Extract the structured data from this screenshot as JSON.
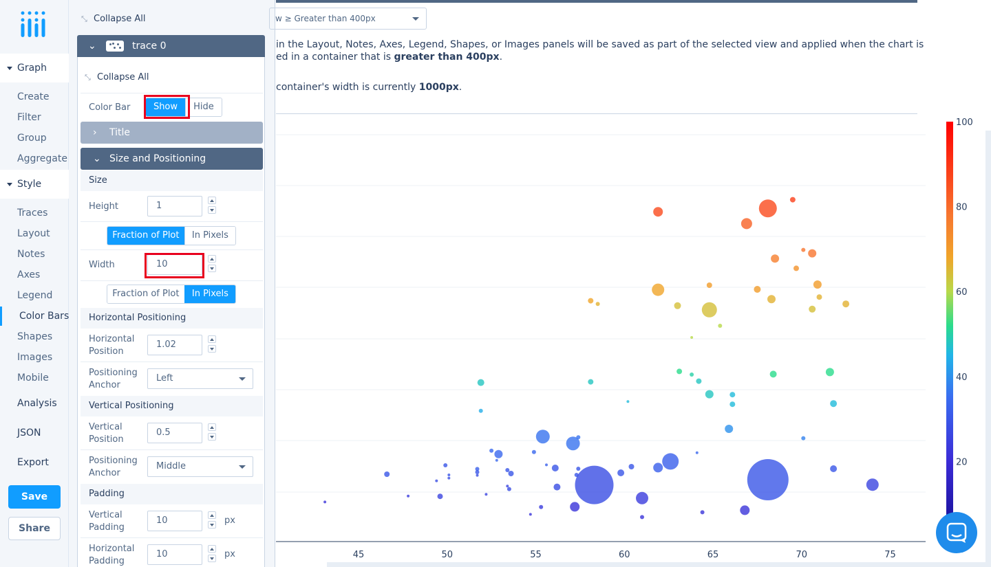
{
  "nav": {
    "sections": [
      {
        "label": "Graph",
        "items": [
          "Create",
          "Filter",
          "Group",
          "Aggregate"
        ]
      },
      {
        "label": "Style",
        "items": [
          "Traces",
          "Layout",
          "Notes",
          "Axes",
          "Legend",
          "Color Bars",
          "Shapes",
          "Images",
          "Mobile"
        ]
      }
    ],
    "active_item": "Color Bars",
    "plain": [
      "Analysis",
      "JSON",
      "Export"
    ],
    "save": "Save",
    "share": "Share"
  },
  "panel": {
    "collapse_all": "Collapse All",
    "trace_name": "trace 0",
    "color_bar_label": "Color Bar",
    "color_bar_options": [
      "Show",
      "Hide"
    ],
    "color_bar_selected": "Show",
    "title_section": "Title",
    "size_section": "Size and Positioning",
    "size_group": "Size",
    "height_label": "Height",
    "height_value": "1",
    "height_modes": [
      "Fraction of Plot",
      "In Pixels"
    ],
    "height_mode_selected": "Fraction of Plot",
    "width_label": "Width",
    "width_value": "10",
    "width_modes": [
      "Fraction of Plot",
      "In Pixels"
    ],
    "width_mode_selected": "In Pixels",
    "hpos_group": "Horizontal Positioning",
    "hpos_label": "Horizontal Position",
    "hpos_value": "1.02",
    "hanchor_label": "Positioning Anchor",
    "hanchor_value": "Left",
    "vpos_group": "Vertical Positioning",
    "vpos_label": "Vertical Position",
    "vpos_value": "0.5",
    "vanchor_label": "Positioning Anchor",
    "vanchor_value": "Middle",
    "padding_group": "Padding",
    "vpad_label": "Vertical Padding",
    "vpad_value": "10",
    "hpad_label": "Horizontal Padding",
    "hpad_value": "10",
    "unit": "px"
  },
  "main": {
    "view_select": "w ≥ Greater than 400px",
    "msg1": "in the Layout, Notes, Axes, Legend, Shapes, or Images panels will be saved as part of the selected view and applied when the chart is",
    "msg2_pre": "ed in a container that is ",
    "msg2_bold": "greater than 400px",
    "msg2_post": ".",
    "msg3_pre": "container's width is currently ",
    "msg3_bold": "1000px",
    "msg3_post": "."
  },
  "chart_data": {
    "type": "scatter",
    "x_ticks": [
      45,
      50,
      55,
      60,
      65,
      70,
      75
    ],
    "colorbar_ticks": [
      100,
      80,
      60,
      40,
      20
    ],
    "color_range": [
      0,
      100
    ],
    "points": [
      {
        "x": 43.1,
        "c": 22,
        "s": 2
      },
      {
        "x": 46.6,
        "c": 30,
        "s": 4
      },
      {
        "x": 47.8,
        "c": 24,
        "s": 2
      },
      {
        "x": 49.6,
        "c": 26,
        "s": 4
      },
      {
        "x": 49.4,
        "c": 28,
        "s": 2
      },
      {
        "x": 49.9,
        "c": 30,
        "s": 3
      },
      {
        "x": 50.1,
        "c": 30,
        "s": 2
      },
      {
        "x": 50.1,
        "c": 28,
        "s": 2
      },
      {
        "x": 51.7,
        "c": 32,
        "s": 3
      },
      {
        "x": 51.7,
        "c": 30,
        "s": 3
      },
      {
        "x": 51.7,
        "c": 28,
        "s": 2
      },
      {
        "x": 52.2,
        "c": 26,
        "s": 2
      },
      {
        "x": 52.5,
        "c": 34,
        "s": 3
      },
      {
        "x": 52.8,
        "c": 34,
        "s": 2
      },
      {
        "x": 52.9,
        "c": 34,
        "s": 6
      },
      {
        "x": 51.9,
        "c": 48,
        "s": 5
      },
      {
        "x": 51.9,
        "c": 44,
        "s": 3
      },
      {
        "x": 53.4,
        "c": 30,
        "s": 3
      },
      {
        "x": 53.5,
        "c": 28,
        "s": 3
      },
      {
        "x": 53.6,
        "c": 30,
        "s": 4
      },
      {
        "x": 53.4,
        "c": 26,
        "s": 2
      },
      {
        "x": 54.7,
        "c": 22,
        "s": 2
      },
      {
        "x": 54.9,
        "c": 34,
        "s": 3
      },
      {
        "x": 55.4,
        "c": 36,
        "s": 10
      },
      {
        "x": 55.6,
        "c": 32,
        "s": 2
      },
      {
        "x": 56.1,
        "c": 30,
        "s": 5
      },
      {
        "x": 56.2,
        "c": 28,
        "s": 5
      },
      {
        "x": 57.1,
        "c": 36,
        "s": 10
      },
      {
        "x": 57.4,
        "c": 36,
        "s": 3
      },
      {
        "x": 57.3,
        "c": 30,
        "s": 3
      },
      {
        "x": 57.4,
        "c": 30,
        "s": 3
      },
      {
        "x": 58.1,
        "c": 68,
        "s": 4
      },
      {
        "x": 58.5,
        "c": 66,
        "s": 3
      },
      {
        "x": 58.1,
        "c": 48,
        "s": 4
      },
      {
        "x": 58.3,
        "c": 28,
        "s": 28
      },
      {
        "x": 57.2,
        "c": 22,
        "s": 7
      },
      {
        "x": 55.3,
        "c": 24,
        "s": 3
      },
      {
        "x": 59.8,
        "c": 30,
        "s": 5
      },
      {
        "x": 60.4,
        "c": 30,
        "s": 4
      },
      {
        "x": 60.2,
        "c": 46,
        "s": 2
      },
      {
        "x": 61.0,
        "c": 24,
        "s": 9
      },
      {
        "x": 61.0,
        "c": 22,
        "s": 3
      },
      {
        "x": 61.9,
        "c": 86,
        "s": 7
      },
      {
        "x": 61.9,
        "c": 68,
        "s": 9
      },
      {
        "x": 61.9,
        "c": 32,
        "s": 7
      },
      {
        "x": 62.6,
        "c": 32,
        "s": 12
      },
      {
        "x": 63.0,
        "c": 64,
        "s": 5
      },
      {
        "x": 63.1,
        "c": 52,
        "s": 4
      },
      {
        "x": 63.8,
        "c": 50,
        "s": 3
      },
      {
        "x": 63.8,
        "c": 60,
        "s": 2
      },
      {
        "x": 64.1,
        "c": 34,
        "s": 2
      },
      {
        "x": 64.2,
        "c": 48,
        "s": 4
      },
      {
        "x": 64.4,
        "c": 22,
        "s": 3
      },
      {
        "x": 64.8,
        "c": 64,
        "s": 11
      },
      {
        "x": 64.8,
        "c": 48,
        "s": 6
      },
      {
        "x": 64.8,
        "c": 70,
        "s": 4
      },
      {
        "x": 65.4,
        "c": 60,
        "s": 3
      },
      {
        "x": 65.9,
        "c": 40,
        "s": 6
      },
      {
        "x": 66.1,
        "c": 46,
        "s": 4
      },
      {
        "x": 66.1,
        "c": 46,
        "s": 4
      },
      {
        "x": 66.8,
        "c": 22,
        "s": 7
      },
      {
        "x": 66.9,
        "c": 82,
        "s": 8
      },
      {
        "x": 67.5,
        "c": 70,
        "s": 5
      },
      {
        "x": 68.1,
        "c": 86,
        "s": 13
      },
      {
        "x": 68.1,
        "c": 30,
        "s": 30
      },
      {
        "x": 68.5,
        "c": 76,
        "s": 6
      },
      {
        "x": 68.3,
        "c": 66,
        "s": 6
      },
      {
        "x": 68.4,
        "c": 52,
        "s": 5
      },
      {
        "x": 69.5,
        "c": 88,
        "s": 4
      },
      {
        "x": 69.7,
        "c": 72,
        "s": 4
      },
      {
        "x": 70.1,
        "c": 78,
        "s": 3
      },
      {
        "x": 70.6,
        "c": 64,
        "s": 5
      },
      {
        "x": 70.6,
        "c": 78,
        "s": 6
      },
      {
        "x": 70.9,
        "c": 70,
        "s": 6
      },
      {
        "x": 71.0,
        "c": 66,
        "s": 4
      },
      {
        "x": 71.6,
        "c": 52,
        "s": 6
      },
      {
        "x": 71.8,
        "c": 30,
        "s": 5
      },
      {
        "x": 71.8,
        "c": 46,
        "s": 5
      },
      {
        "x": 72.5,
        "c": 66,
        "s": 5
      },
      {
        "x": 74.0,
        "c": 26,
        "s": 9
      },
      {
        "x": 70.1,
        "c": 38,
        "s": 3
      }
    ]
  }
}
